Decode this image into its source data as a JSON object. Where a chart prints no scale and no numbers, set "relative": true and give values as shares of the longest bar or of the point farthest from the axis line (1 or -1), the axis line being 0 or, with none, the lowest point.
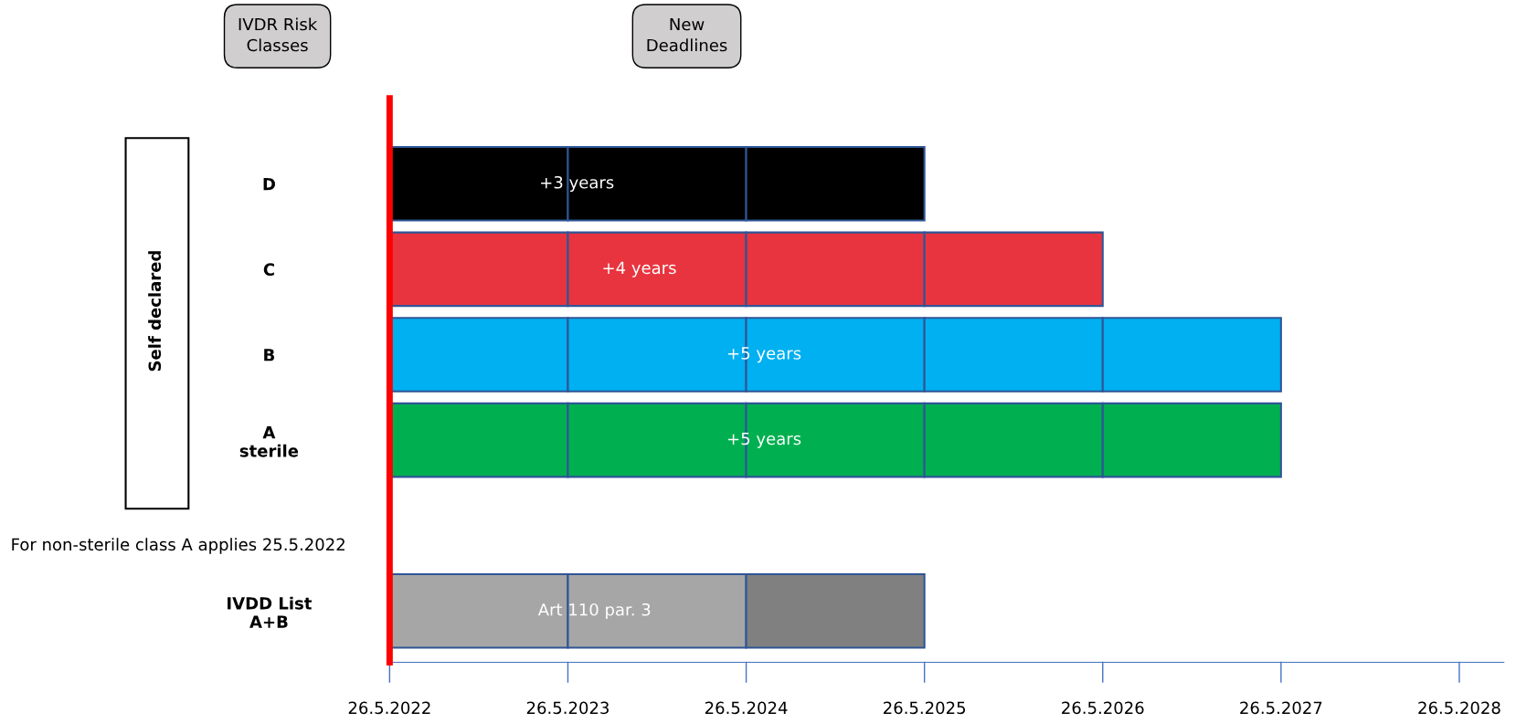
{
  "chart_data": {
    "type": "bar",
    "orientation": "horizontal",
    "stacked": true,
    "relative": true,
    "categories": [
      "D",
      "C",
      "B",
      "A\nsterile",
      null,
      "IVDD List\nA+B"
    ],
    "series": [
      {
        "values": [
          0.2,
          0.2,
          0.2,
          0.2,
          null,
          0.2
        ],
        "colors": [
          "#000000",
          "#e8343f",
          "#00b0f0",
          "#00b050",
          "#000000",
          "#a6a6a6"
        ]
      },
      {
        "values": [
          0.2,
          0.2,
          0.2,
          0.2,
          null,
          0.2
        ],
        "colors": [
          "#000000",
          "#e8343f",
          "#00b0f0",
          "#00b050",
          "#000000",
          "#a6a6a6"
        ]
      },
      {
        "values": [
          0.2,
          0.2,
          0.2,
          0.2,
          null,
          0.2
        ],
        "colors": [
          "#000000",
          "#e8343f",
          "#00b0f0",
          "#00b050",
          "#000000",
          "#808080"
        ]
      },
      {
        "values": [
          null,
          0.2,
          0.2,
          0.2,
          null,
          null
        ],
        "colors": [
          "#000000",
          "#e8343f",
          "#00b0f0",
          "#00b050",
          "#000000",
          "#808080"
        ]
      },
      {
        "values": [
          null,
          null,
          0.2,
          0.2,
          null,
          null
        ],
        "colors": [
          "#000000",
          "#e8343f",
          "#00b0f0",
          "#00b050",
          "#000000",
          "#808080"
        ]
      }
    ],
    "ref_lines": [
      {
        "axis": "x",
        "value": 0,
        "color": "#ff0000"
      }
    ],
    "grid": false,
    "legend": false,
    "annotations": [
      "IVDR Risk\nClasses",
      "New\nDeadlines",
      "Self declared",
      "For non-sterile class A applies 25.5.2022",
      "+3 years",
      "+4 years",
      "+5 years",
      "+5 years",
      "Art 110 par. 3",
      "26.5.2022",
      "26.5.2023",
      "26.5.2024",
      "26.5.2025",
      "26.5.2026",
      "26.5.2027",
      "26.5.2028"
    ]
  }
}
